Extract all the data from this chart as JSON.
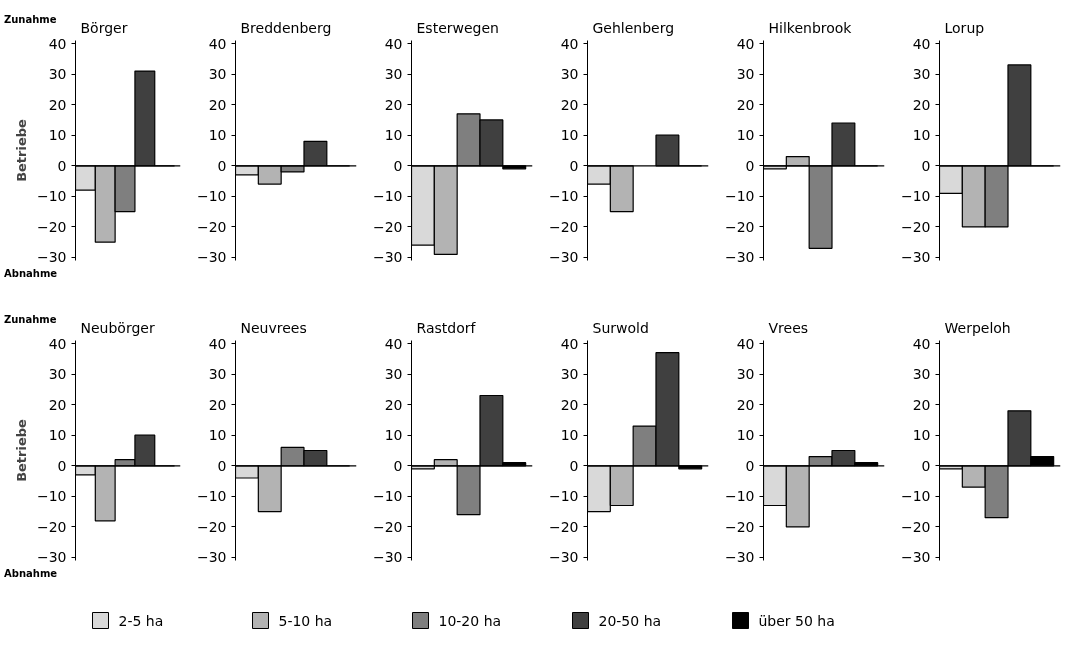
{
  "chart_data": [
    {
      "type": "bar",
      "title": "Börger",
      "ylabel": "Betriebe",
      "annotations": [
        "Zunahme",
        "Abnahme"
      ],
      "categories": [
        null
      ],
      "ylim": [
        -31,
        41
      ],
      "yticks": [
        40,
        30,
        20,
        10,
        0,
        -10,
        -20,
        -30
      ],
      "tick_labels": "y",
      "legend": "bottom",
      "series": [
        {
          "name": "2-5 ha",
          "color": "#d9d9d9",
          "values": [
            -8
          ]
        },
        {
          "name": "5-10 ha",
          "color": "#b3b3b3",
          "values": [
            -25
          ]
        },
        {
          "name": "10-20 ha",
          "color": "#7f7f7f",
          "values": [
            -15
          ]
        },
        {
          "name": "20-50 ha",
          "color": "#404040",
          "values": [
            31
          ]
        },
        {
          "name": "über 50 ha",
          "color": "#000000",
          "values": [
            0
          ]
        }
      ]
    },
    {
      "type": "bar",
      "title": "Breddenberg",
      "categories": [
        null
      ],
      "ylim": [
        -31,
        41
      ],
      "yticks": [
        40,
        30,
        20,
        10,
        0,
        -10,
        -20,
        -30
      ],
      "tick_labels": "y",
      "series": [
        {
          "color": "#d9d9d9",
          "values": [
            -3
          ]
        },
        {
          "color": "#b3b3b3",
          "values": [
            -6
          ]
        },
        {
          "color": "#7f7f7f",
          "values": [
            -2
          ]
        },
        {
          "color": "#404040",
          "values": [
            8
          ]
        },
        {
          "color": "#000000",
          "values": [
            0
          ]
        }
      ]
    },
    {
      "type": "bar",
      "title": "Esterwegen",
      "categories": [
        null
      ],
      "ylim": [
        -31,
        41
      ],
      "yticks": [
        40,
        30,
        20,
        10,
        0,
        -10,
        -20,
        -30
      ],
      "tick_labels": "y",
      "series": [
        {
          "color": "#d9d9d9",
          "values": [
            -26
          ]
        },
        {
          "color": "#b3b3b3",
          "values": [
            -29
          ]
        },
        {
          "color": "#7f7f7f",
          "values": [
            17
          ]
        },
        {
          "color": "#404040",
          "values": [
            15
          ]
        },
        {
          "color": "#000000",
          "values": [
            -1
          ]
        }
      ]
    },
    {
      "type": "bar",
      "title": "Gehlenberg",
      "categories": [
        null
      ],
      "ylim": [
        -31,
        41
      ],
      "yticks": [
        40,
        30,
        20,
        10,
        0,
        -10,
        -20,
        -30
      ],
      "tick_labels": "y",
      "series": [
        {
          "color": "#d9d9d9",
          "values": [
            -6
          ]
        },
        {
          "color": "#b3b3b3",
          "values": [
            -15
          ]
        },
        {
          "color": "#7f7f7f",
          "values": [
            null
          ]
        },
        {
          "color": "#404040",
          "values": [
            10
          ]
        },
        {
          "color": "#000000",
          "values": [
            0
          ]
        }
      ]
    },
    {
      "type": "bar",
      "title": "Hilkenbrook",
      "categories": [
        null
      ],
      "ylim": [
        -31,
        41
      ],
      "yticks": [
        40,
        30,
        20,
        10,
        0,
        -10,
        -20,
        -30
      ],
      "tick_labels": "y",
      "series": [
        {
          "color": "#d9d9d9",
          "values": [
            -1
          ]
        },
        {
          "color": "#b3b3b3",
          "values": [
            3
          ]
        },
        {
          "color": "#7f7f7f",
          "values": [
            -27
          ]
        },
        {
          "color": "#404040",
          "values": [
            14
          ]
        },
        {
          "color": "#000000",
          "values": [
            0
          ]
        }
      ]
    },
    {
      "type": "bar",
      "title": "Lorup",
      "categories": [
        null
      ],
      "ylim": [
        -31,
        41
      ],
      "yticks": [
        40,
        30,
        20,
        10,
        0,
        -10,
        -20,
        -30
      ],
      "tick_labels": "y",
      "series": [
        {
          "color": "#d9d9d9",
          "values": [
            -9
          ]
        },
        {
          "color": "#b3b3b3",
          "values": [
            -20
          ]
        },
        {
          "color": "#7f7f7f",
          "values": [
            -20
          ]
        },
        {
          "color": "#404040",
          "values": [
            33
          ]
        },
        {
          "color": "#000000",
          "values": [
            0
          ]
        }
      ]
    },
    {
      "type": "bar",
      "title": "Neubörger",
      "ylabel": "Betriebe",
      "annotations": [
        "Zunahme",
        "Abnahme"
      ],
      "categories": [
        null
      ],
      "ylim": [
        -31,
        41
      ],
      "yticks": [
        40,
        30,
        20,
        10,
        0,
        -10,
        -20,
        -30
      ],
      "tick_labels": "y",
      "series": [
        {
          "color": "#d9d9d9",
          "values": [
            -3
          ]
        },
        {
          "color": "#b3b3b3",
          "values": [
            -18
          ]
        },
        {
          "color": "#7f7f7f",
          "values": [
            2
          ]
        },
        {
          "color": "#404040",
          "values": [
            10
          ]
        },
        {
          "color": "#000000",
          "values": [
            0
          ]
        }
      ]
    },
    {
      "type": "bar",
      "title": "Neuvrees",
      "categories": [
        null
      ],
      "ylim": [
        -31,
        41
      ],
      "yticks": [
        40,
        30,
        20,
        10,
        0,
        -10,
        -20,
        -30
      ],
      "tick_labels": "y",
      "series": [
        {
          "color": "#d9d9d9",
          "values": [
            -4
          ]
        },
        {
          "color": "#b3b3b3",
          "values": [
            -15
          ]
        },
        {
          "color": "#7f7f7f",
          "values": [
            6
          ]
        },
        {
          "color": "#404040",
          "values": [
            5
          ]
        },
        {
          "color": "#000000",
          "values": [
            0
          ]
        }
      ]
    },
    {
      "type": "bar",
      "title": "Rastdorf",
      "categories": [
        null
      ],
      "ylim": [
        -31,
        41
      ],
      "yticks": [
        40,
        30,
        20,
        10,
        0,
        -10,
        -20,
        -30
      ],
      "tick_labels": "y",
      "series": [
        {
          "color": "#d9d9d9",
          "values": [
            -1
          ]
        },
        {
          "color": "#b3b3b3",
          "values": [
            2
          ]
        },
        {
          "color": "#7f7f7f",
          "values": [
            -16
          ]
        },
        {
          "color": "#404040",
          "values": [
            23
          ]
        },
        {
          "color": "#000000",
          "values": [
            1
          ]
        }
      ]
    },
    {
      "type": "bar",
      "title": "Surwold",
      "categories": [
        null
      ],
      "ylim": [
        -31,
        41
      ],
      "yticks": [
        40,
        30,
        20,
        10,
        0,
        -10,
        -20,
        -30
      ],
      "tick_labels": "y",
      "series": [
        {
          "color": "#d9d9d9",
          "values": [
            -15
          ]
        },
        {
          "color": "#b3b3b3",
          "values": [
            -13
          ]
        },
        {
          "color": "#7f7f7f",
          "values": [
            13
          ]
        },
        {
          "color": "#404040",
          "values": [
            37
          ]
        },
        {
          "color": "#000000",
          "values": [
            -1
          ]
        }
      ]
    },
    {
      "type": "bar",
      "title": "Vrees",
      "categories": [
        null
      ],
      "ylim": [
        -31,
        41
      ],
      "yticks": [
        40,
        30,
        20,
        10,
        0,
        -10,
        -20,
        -30
      ],
      "tick_labels": "y",
      "series": [
        {
          "color": "#d9d9d9",
          "values": [
            -13
          ]
        },
        {
          "color": "#b3b3b3",
          "values": [
            -20
          ]
        },
        {
          "color": "#7f7f7f",
          "values": [
            3
          ]
        },
        {
          "color": "#404040",
          "values": [
            5
          ]
        },
        {
          "color": "#000000",
          "values": [
            1
          ]
        }
      ]
    },
    {
      "type": "bar",
      "title": "Werpeloh",
      "categories": [
        null
      ],
      "ylim": [
        -31,
        41
      ],
      "yticks": [
        40,
        30,
        20,
        10,
        0,
        -10,
        -20,
        -30
      ],
      "tick_labels": "y",
      "series": [
        {
          "color": "#d9d9d9",
          "values": [
            -1
          ]
        },
        {
          "color": "#b3b3b3",
          "values": [
            -7
          ]
        },
        {
          "color": "#7f7f7f",
          "values": [
            -17
          ]
        },
        {
          "color": "#404040",
          "values": [
            18
          ]
        },
        {
          "color": "#000000",
          "values": [
            3
          ]
        }
      ]
    }
  ]
}
